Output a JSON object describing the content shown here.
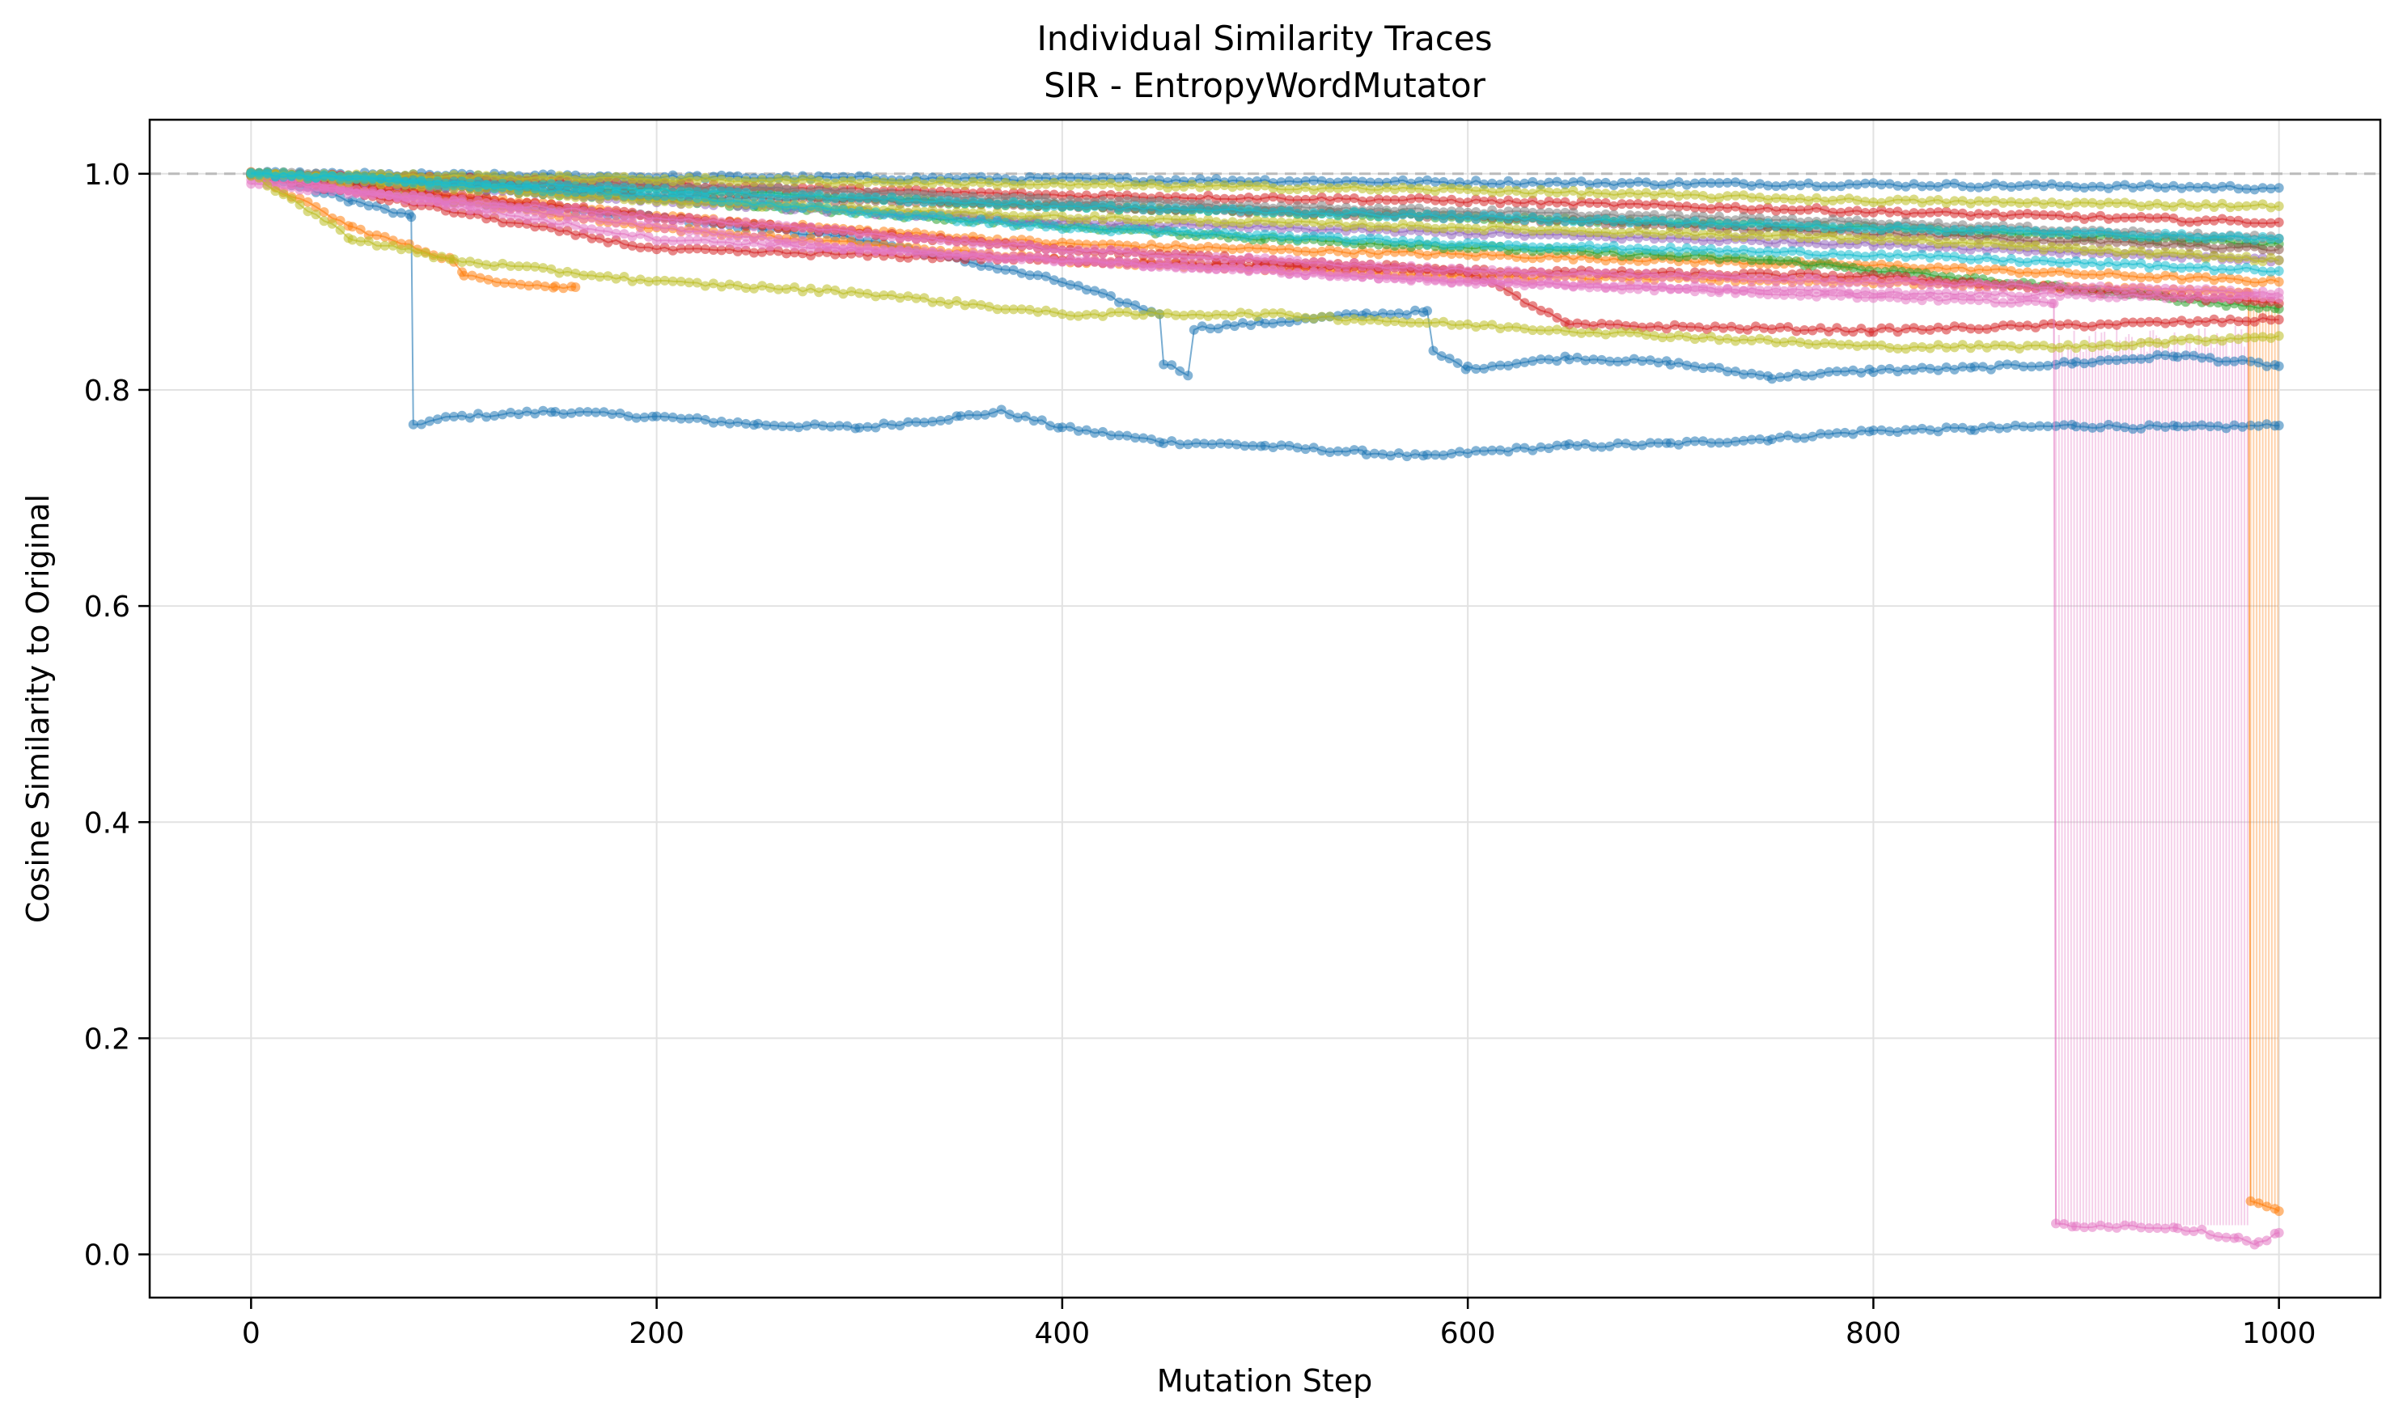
{
  "chart_data": {
    "type": "line",
    "title": "Individual Similarity Traces",
    "subtitle": "SIR - EntropyWordMutator",
    "xlabel": "Mutation Step",
    "ylabel": "Cosine Similarity to Original",
    "xlim": [
      -50,
      1050
    ],
    "ylim": [
      -0.04,
      1.05
    ],
    "xticks": [
      0,
      200,
      400,
      600,
      800,
      1000
    ],
    "yticks": [
      0.0,
      0.2,
      0.4,
      0.6,
      0.8,
      1.0
    ],
    "xtick_labels": [
      "0",
      "200",
      "400",
      "600",
      "800",
      "1000"
    ],
    "ytick_labels": [
      "0.0",
      "0.2",
      "0.4",
      "0.6",
      "0.8",
      "1.0"
    ],
    "grid": true,
    "reference_line": {
      "y": 1.0,
      "style": "dashed",
      "color": "#bbbbbb"
    },
    "palette": [
      "#1f77b4",
      "#ff7f0e",
      "#2ca02c",
      "#d62728",
      "#9467bd",
      "#8c564b",
      "#e377c2",
      "#7f7f7f",
      "#bcbd22",
      "#17becf"
    ],
    "series": [
      {
        "color": "#1f77b4",
        "x": [
          0,
          50,
          79,
          80,
          100,
          150,
          200,
          250,
          300,
          350,
          370,
          400,
          450,
          500,
          550,
          580,
          600,
          650,
          700,
          750,
          800,
          850,
          900,
          950,
          1000
        ],
        "y": [
          1.0,
          0.975,
          0.96,
          0.768,
          0.775,
          0.78,
          0.775,
          0.768,
          0.765,
          0.775,
          0.78,
          0.765,
          0.752,
          0.748,
          0.742,
          0.738,
          0.742,
          0.748,
          0.75,
          0.755,
          0.762,
          0.764,
          0.767,
          0.765,
          0.767
        ]
      },
      {
        "color": "#1f77b4",
        "x": [
          0,
          100,
          200,
          300,
          400,
          448,
          450,
          462,
          465,
          500,
          550,
          580,
          583,
          600,
          650,
          700,
          750,
          800,
          850,
          900,
          950,
          1000
        ],
        "y": [
          1.0,
          0.975,
          0.96,
          0.94,
          0.9,
          0.87,
          0.825,
          0.815,
          0.857,
          0.862,
          0.87,
          0.872,
          0.835,
          0.82,
          0.83,
          0.825,
          0.812,
          0.818,
          0.82,
          0.825,
          0.832,
          0.822
        ]
      },
      {
        "color": "#1f77b4",
        "x": [
          0,
          200,
          400,
          600,
          800,
          1000
        ],
        "y": [
          1.0,
          0.997,
          0.995,
          0.992,
          0.99,
          0.987
        ]
      },
      {
        "color": "#ff7f0e",
        "x": [
          0,
          50,
          100,
          105,
          150,
          160
        ],
        "y": [
          1.0,
          0.95,
          0.92,
          0.905,
          0.895,
          0.895
        ]
      },
      {
        "color": "#ff7f0e",
        "x": [
          0,
          200,
          400,
          600,
          800,
          1000
        ],
        "y": [
          1.0,
          0.96,
          0.935,
          0.925,
          0.915,
          0.9
        ]
      },
      {
        "color": "#ff7f0e",
        "x": [
          0,
          200,
          400,
          600,
          800,
          985,
          986,
          1000
        ],
        "y": [
          1.0,
          0.95,
          0.92,
          0.905,
          0.9,
          0.89,
          0.048,
          0.04
        ]
      },
      {
        "color": "#2ca02c",
        "x": [
          0,
          200,
          400,
          600,
          800,
          1000
        ],
        "y": [
          1.0,
          0.985,
          0.97,
          0.96,
          0.95,
          0.935
        ]
      },
      {
        "color": "#2ca02c",
        "x": [
          0,
          250,
          500,
          750,
          1000
        ],
        "y": [
          1.0,
          0.97,
          0.94,
          0.92,
          0.875
        ]
      },
      {
        "color": "#d62728",
        "x": [
          0,
          200,
          400,
          600,
          800,
          1000
        ],
        "y": [
          1.0,
          0.99,
          0.98,
          0.975,
          0.965,
          0.955
        ]
      },
      {
        "color": "#d62728",
        "x": [
          0,
          200,
          400,
          600,
          650,
          800,
          1000
        ],
        "y": [
          1.0,
          0.96,
          0.93,
          0.91,
          0.86,
          0.855,
          0.865
        ]
      },
      {
        "color": "#d62728",
        "x": [
          0,
          200,
          400,
          600,
          800,
          1000
        ],
        "y": [
          1.0,
          0.93,
          0.92,
          0.91,
          0.905,
          0.88
        ]
      },
      {
        "color": "#9467bd",
        "x": [
          0,
          200,
          400,
          600,
          800,
          1000
        ],
        "y": [
          1.0,
          0.975,
          0.955,
          0.945,
          0.935,
          0.92
        ]
      },
      {
        "color": "#8c564b",
        "x": [
          0,
          200,
          400,
          600,
          800,
          1000
        ],
        "y": [
          1.0,
          0.98,
          0.97,
          0.96,
          0.945,
          0.93
        ]
      },
      {
        "color": "#e377c2",
        "x": [
          0,
          200,
          400,
          600,
          800,
          1000
        ],
        "y": [
          1.0,
          0.94,
          0.92,
          0.9,
          0.89,
          0.885
        ]
      },
      {
        "color": "#e377c2",
        "x": [
          0,
          200,
          400,
          600,
          800,
          1000
        ],
        "y": [
          0.99,
          0.96,
          0.93,
          0.91,
          0.9,
          0.89
        ]
      },
      {
        "color": "#e377c2",
        "x": [
          0,
          300,
          600,
          889,
          890,
          900,
          950,
          980,
          990,
          1000
        ],
        "y": [
          0.995,
          0.93,
          0.9,
          0.88,
          0.028,
          0.027,
          0.025,
          0.015,
          0.01,
          0.02
        ]
      },
      {
        "color": "#7f7f7f",
        "x": [
          0,
          200,
          400,
          600,
          800,
          1000
        ],
        "y": [
          1.0,
          0.99,
          0.975,
          0.965,
          0.955,
          0.94
        ]
      },
      {
        "color": "#bcbd22",
        "x": [
          0,
          50,
          100,
          200,
          300,
          400,
          500,
          600,
          700,
          800,
          900,
          1000
        ],
        "y": [
          1.0,
          0.94,
          0.92,
          0.9,
          0.89,
          0.87,
          0.87,
          0.86,
          0.85,
          0.84,
          0.84,
          0.85
        ]
      },
      {
        "color": "#bcbd22",
        "x": [
          0,
          200,
          400,
          600,
          800,
          1000
        ],
        "y": [
          1.0,
          0.995,
          0.99,
          0.985,
          0.975,
          0.97
        ]
      },
      {
        "color": "#bcbd22",
        "x": [
          0,
          200,
          400,
          600,
          800,
          1000
        ],
        "y": [
          1.0,
          0.975,
          0.96,
          0.95,
          0.94,
          0.92
        ]
      },
      {
        "color": "#17becf",
        "x": [
          0,
          200,
          400,
          600,
          800,
          1000
        ],
        "y": [
          1.0,
          0.985,
          0.97,
          0.96,
          0.95,
          0.94
        ]
      },
      {
        "color": "#17becf",
        "x": [
          0,
          200,
          400,
          600,
          800,
          1000
        ],
        "y": [
          1.0,
          0.98,
          0.95,
          0.935,
          0.925,
          0.91
        ]
      }
    ],
    "spikes": [
      {
        "color": "#e377c2",
        "x_range": [
          890,
          985
        ],
        "y_high": 0.86,
        "y_low": 0.027
      },
      {
        "color": "#ff7f0e",
        "x_range": [
          986,
          1000
        ],
        "y_high": 0.9,
        "y_low": 0.045
      }
    ]
  }
}
